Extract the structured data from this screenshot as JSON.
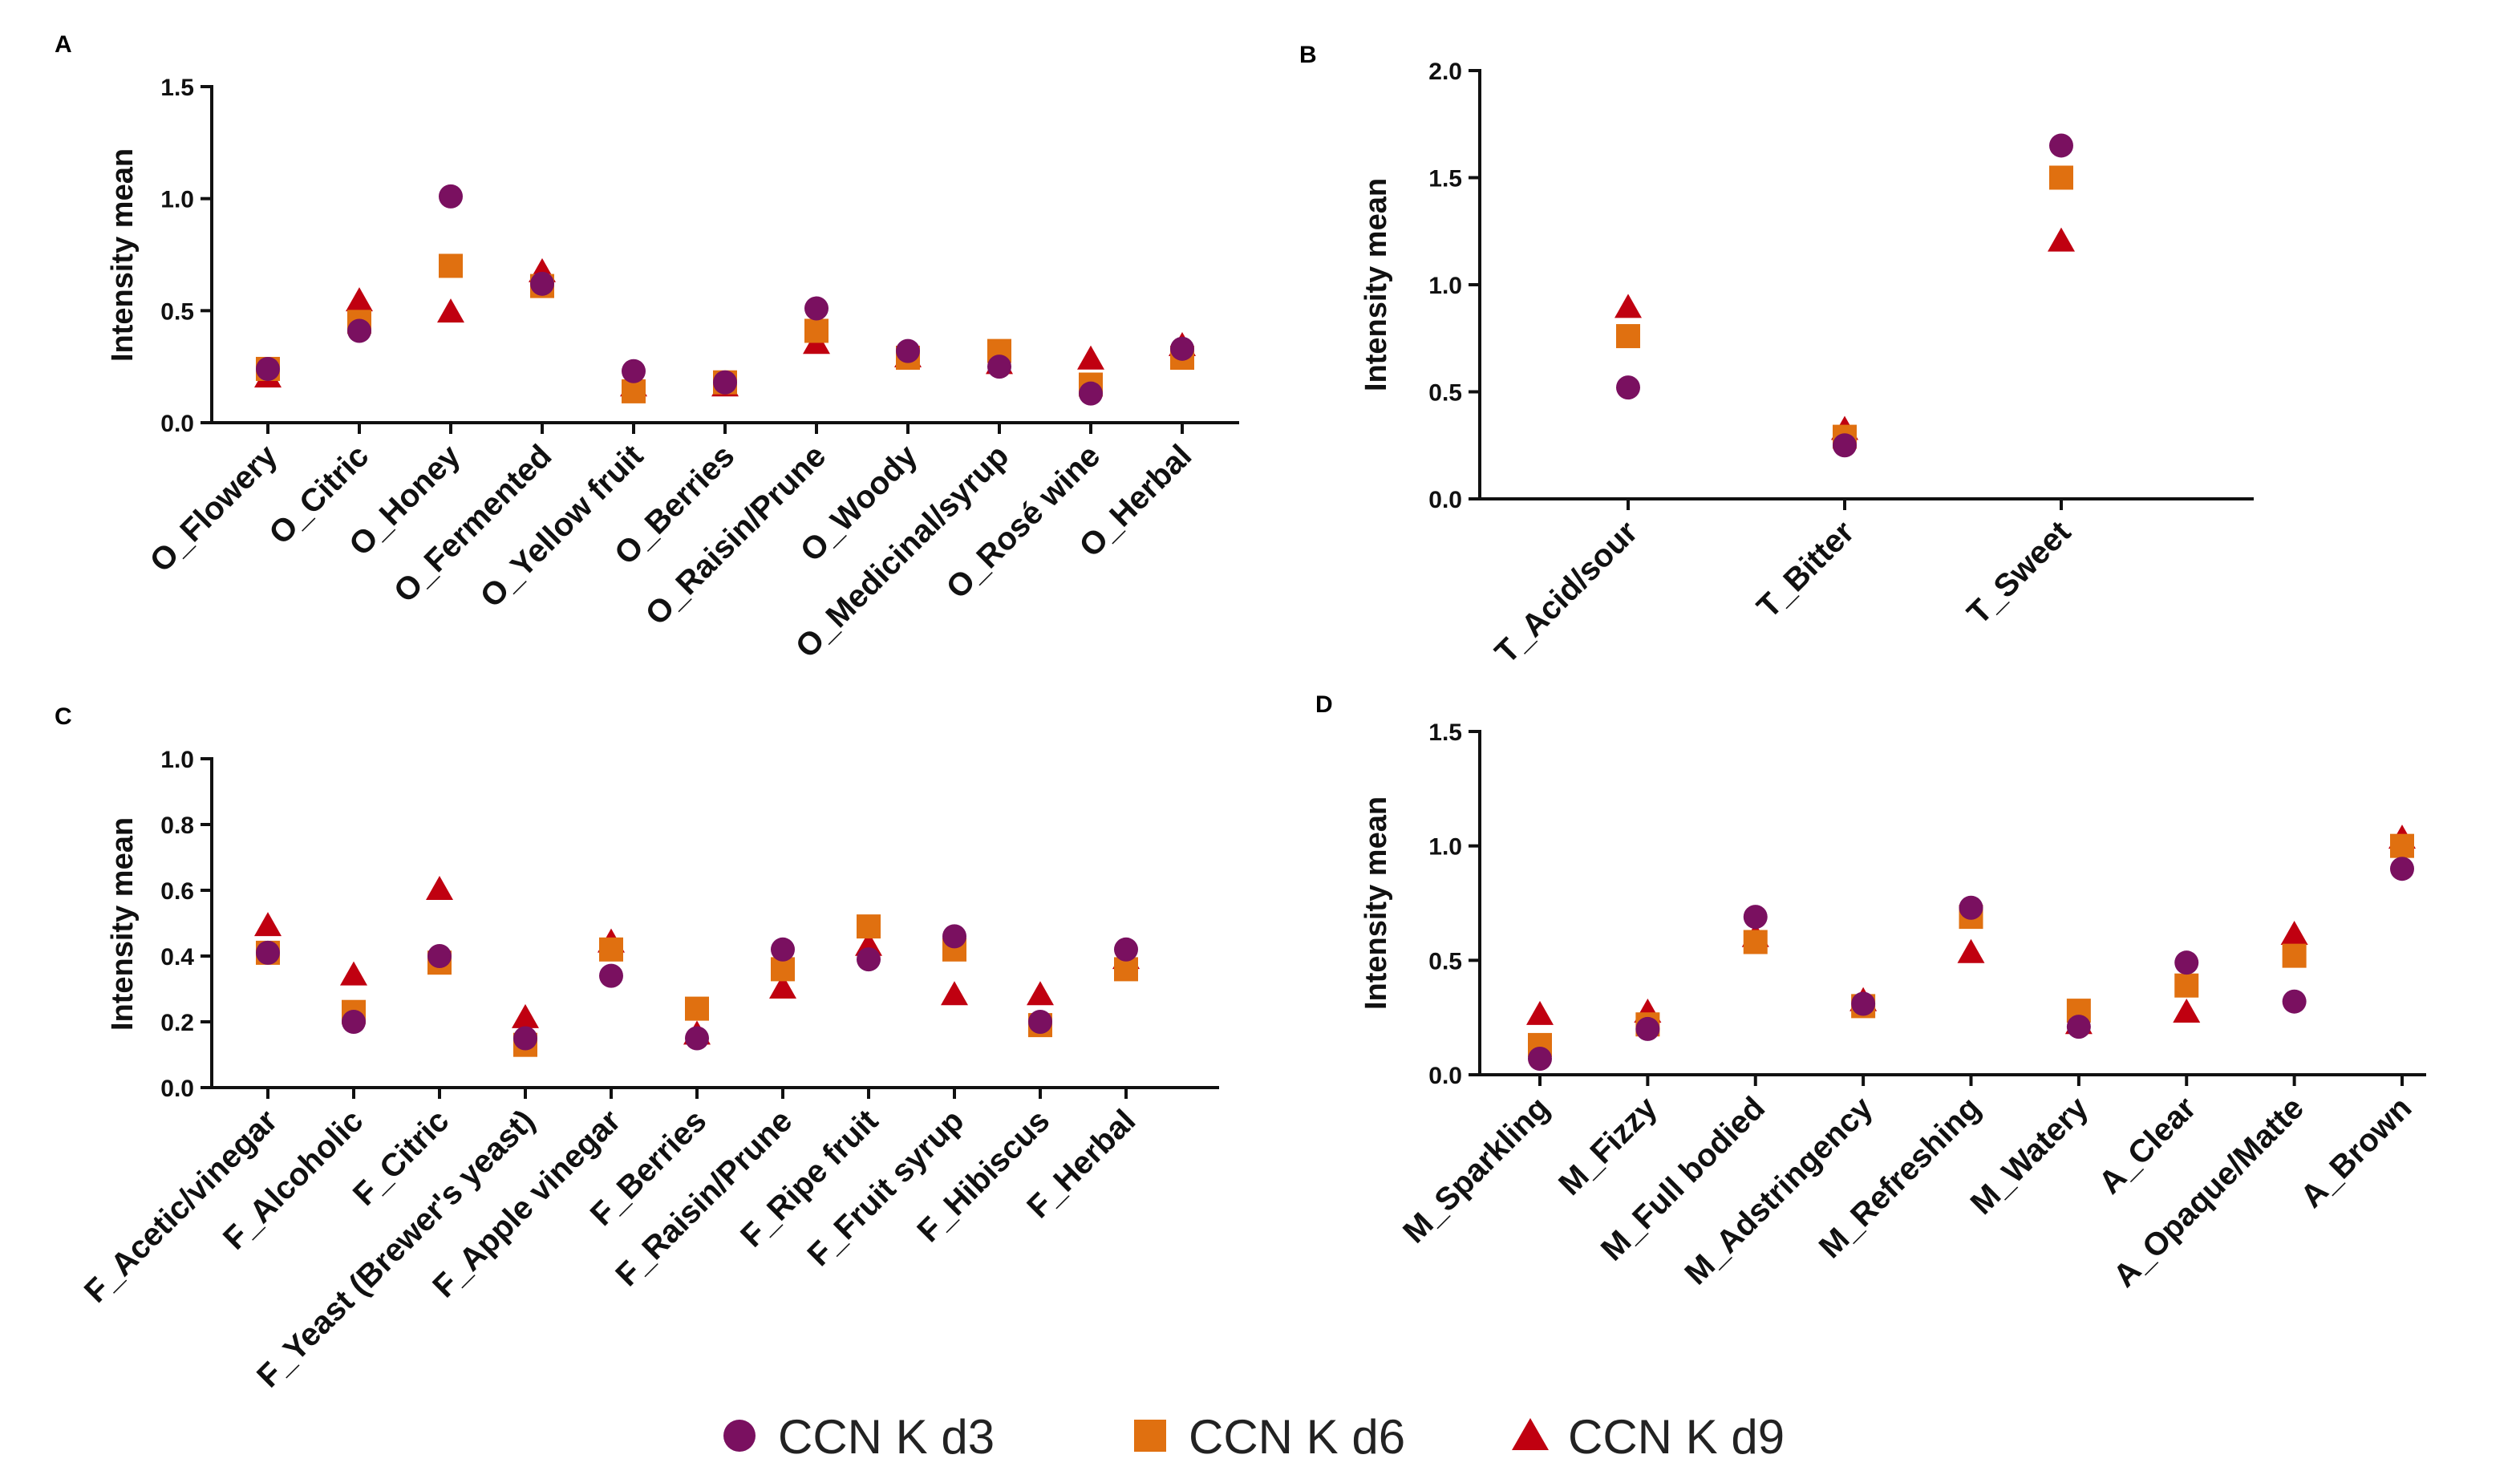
{
  "series_styles": [
    {
      "name": "CCN K d3",
      "marker": "circle",
      "color": "#7a1060"
    },
    {
      "name": "CCN K d6",
      "marker": "square",
      "color": "#e07010"
    },
    {
      "name": "CCN K d9",
      "marker": "triangle",
      "color": "#c00010"
    }
  ],
  "legend": [
    "CCN K d3",
    "CCN K d6",
    "CCN K d9"
  ],
  "chart_data": [
    {
      "type": "scatter",
      "panel": "A",
      "ylabel": "Intensity mean",
      "ylim": [
        0,
        1.5
      ],
      "yticks": [
        "0.0",
        "0.5",
        "1.0",
        "1.5"
      ],
      "categories": [
        "O_Flowery",
        "O_Citric",
        "O_Honey",
        "O_Fermented",
        "O_Yellow fruit",
        "O_Berries",
        "O_Raisin/Prune",
        "O_Woody",
        "O_Medicinal/syrup",
        "O_Rosé wine",
        "O_Herbal"
      ],
      "series": [
        {
          "name": "CCN K d3",
          "values": [
            0.24,
            0.41,
            1.01,
            0.62,
            0.23,
            0.18,
            0.51,
            0.32,
            0.25,
            0.13,
            0.33
          ]
        },
        {
          "name": "CCN K d6",
          "values": [
            0.24,
            0.45,
            0.7,
            0.61,
            0.14,
            0.18,
            0.41,
            0.29,
            0.32,
            0.17,
            0.29
          ]
        },
        {
          "name": "CCN K d9",
          "values": [
            0.2,
            0.54,
            0.49,
            0.67,
            0.16,
            0.16,
            0.35,
            0.29,
            0.26,
            0.28,
            0.34
          ]
        }
      ]
    },
    {
      "type": "scatter",
      "panel": "B",
      "ylabel": "Intensity mean",
      "ylim": [
        0,
        2.0
      ],
      "yticks": [
        "0.0",
        "0.5",
        "1.0",
        "1.5",
        "2.0"
      ],
      "categories": [
        "T_Acid/sour",
        "T_Bitter",
        "T_Sweet"
      ],
      "series": [
        {
          "name": "CCN K d3",
          "values": [
            0.52,
            0.25,
            1.65
          ]
        },
        {
          "name": "CCN K d6",
          "values": [
            0.76,
            0.29,
            1.5
          ]
        },
        {
          "name": "CCN K d9",
          "values": [
            0.89,
            0.32,
            1.2
          ]
        }
      ]
    },
    {
      "type": "scatter",
      "panel": "C",
      "ylabel": "Intensity mean",
      "ylim": [
        0,
        1.0
      ],
      "yticks": [
        "0.0",
        "0.2",
        "0.4",
        "0.6",
        "0.8",
        "1.0"
      ],
      "categories": [
        "F_Acetic/vinegar",
        "F_Alcoholic",
        "F_Citric",
        "F_Yeast (Brewer's yeast)",
        "F_Apple vinegar",
        "F_Berries",
        "F_Raisin/Prune",
        "F_Ripe fruit",
        "F_Fruit syrup",
        "F_Hibiscus",
        "F_Herbal"
      ],
      "series": [
        {
          "name": "CCN K d3",
          "values": [
            0.41,
            0.2,
            0.4,
            0.15,
            0.34,
            0.15,
            0.42,
            0.39,
            0.46,
            0.2,
            0.42
          ]
        },
        {
          "name": "CCN K d6",
          "values": [
            0.41,
            0.23,
            0.38,
            0.13,
            0.42,
            0.24,
            0.36,
            0.49,
            0.42,
            0.19,
            0.36
          ]
        },
        {
          "name": "CCN K d9",
          "values": [
            0.49,
            0.34,
            0.6,
            0.21,
            0.44,
            0.16,
            0.3,
            0.43,
            0.28,
            0.28,
            0.39
          ]
        }
      ]
    },
    {
      "type": "scatter",
      "panel": "D",
      "ylabel": "Intensity mean",
      "ylim": [
        0,
        1.5
      ],
      "yticks": [
        "0.0",
        "0.5",
        "1.0",
        "1.5"
      ],
      "categories": [
        "M_Sparkling",
        "M_Fizzy",
        "M_Full bodied",
        "M_Adstringency",
        "M_Refreshing",
        "M_Watery",
        "A_Clear",
        "A_Opaque/Matte",
        "A_Brown"
      ],
      "series": [
        {
          "name": "CCN K d3",
          "values": [
            0.07,
            0.2,
            0.69,
            0.31,
            0.73,
            0.21,
            0.49,
            0.32,
            0.9
          ]
        },
        {
          "name": "CCN K d6",
          "values": [
            0.13,
            0.22,
            0.58,
            0.3,
            0.69,
            0.28,
            0.39,
            0.52,
            1.0
          ]
        },
        {
          "name": "CCN K d9",
          "values": [
            0.26,
            0.27,
            0.6,
            0.32,
            0.53,
            0.22,
            0.27,
            0.61,
            1.03
          ]
        }
      ]
    }
  ]
}
